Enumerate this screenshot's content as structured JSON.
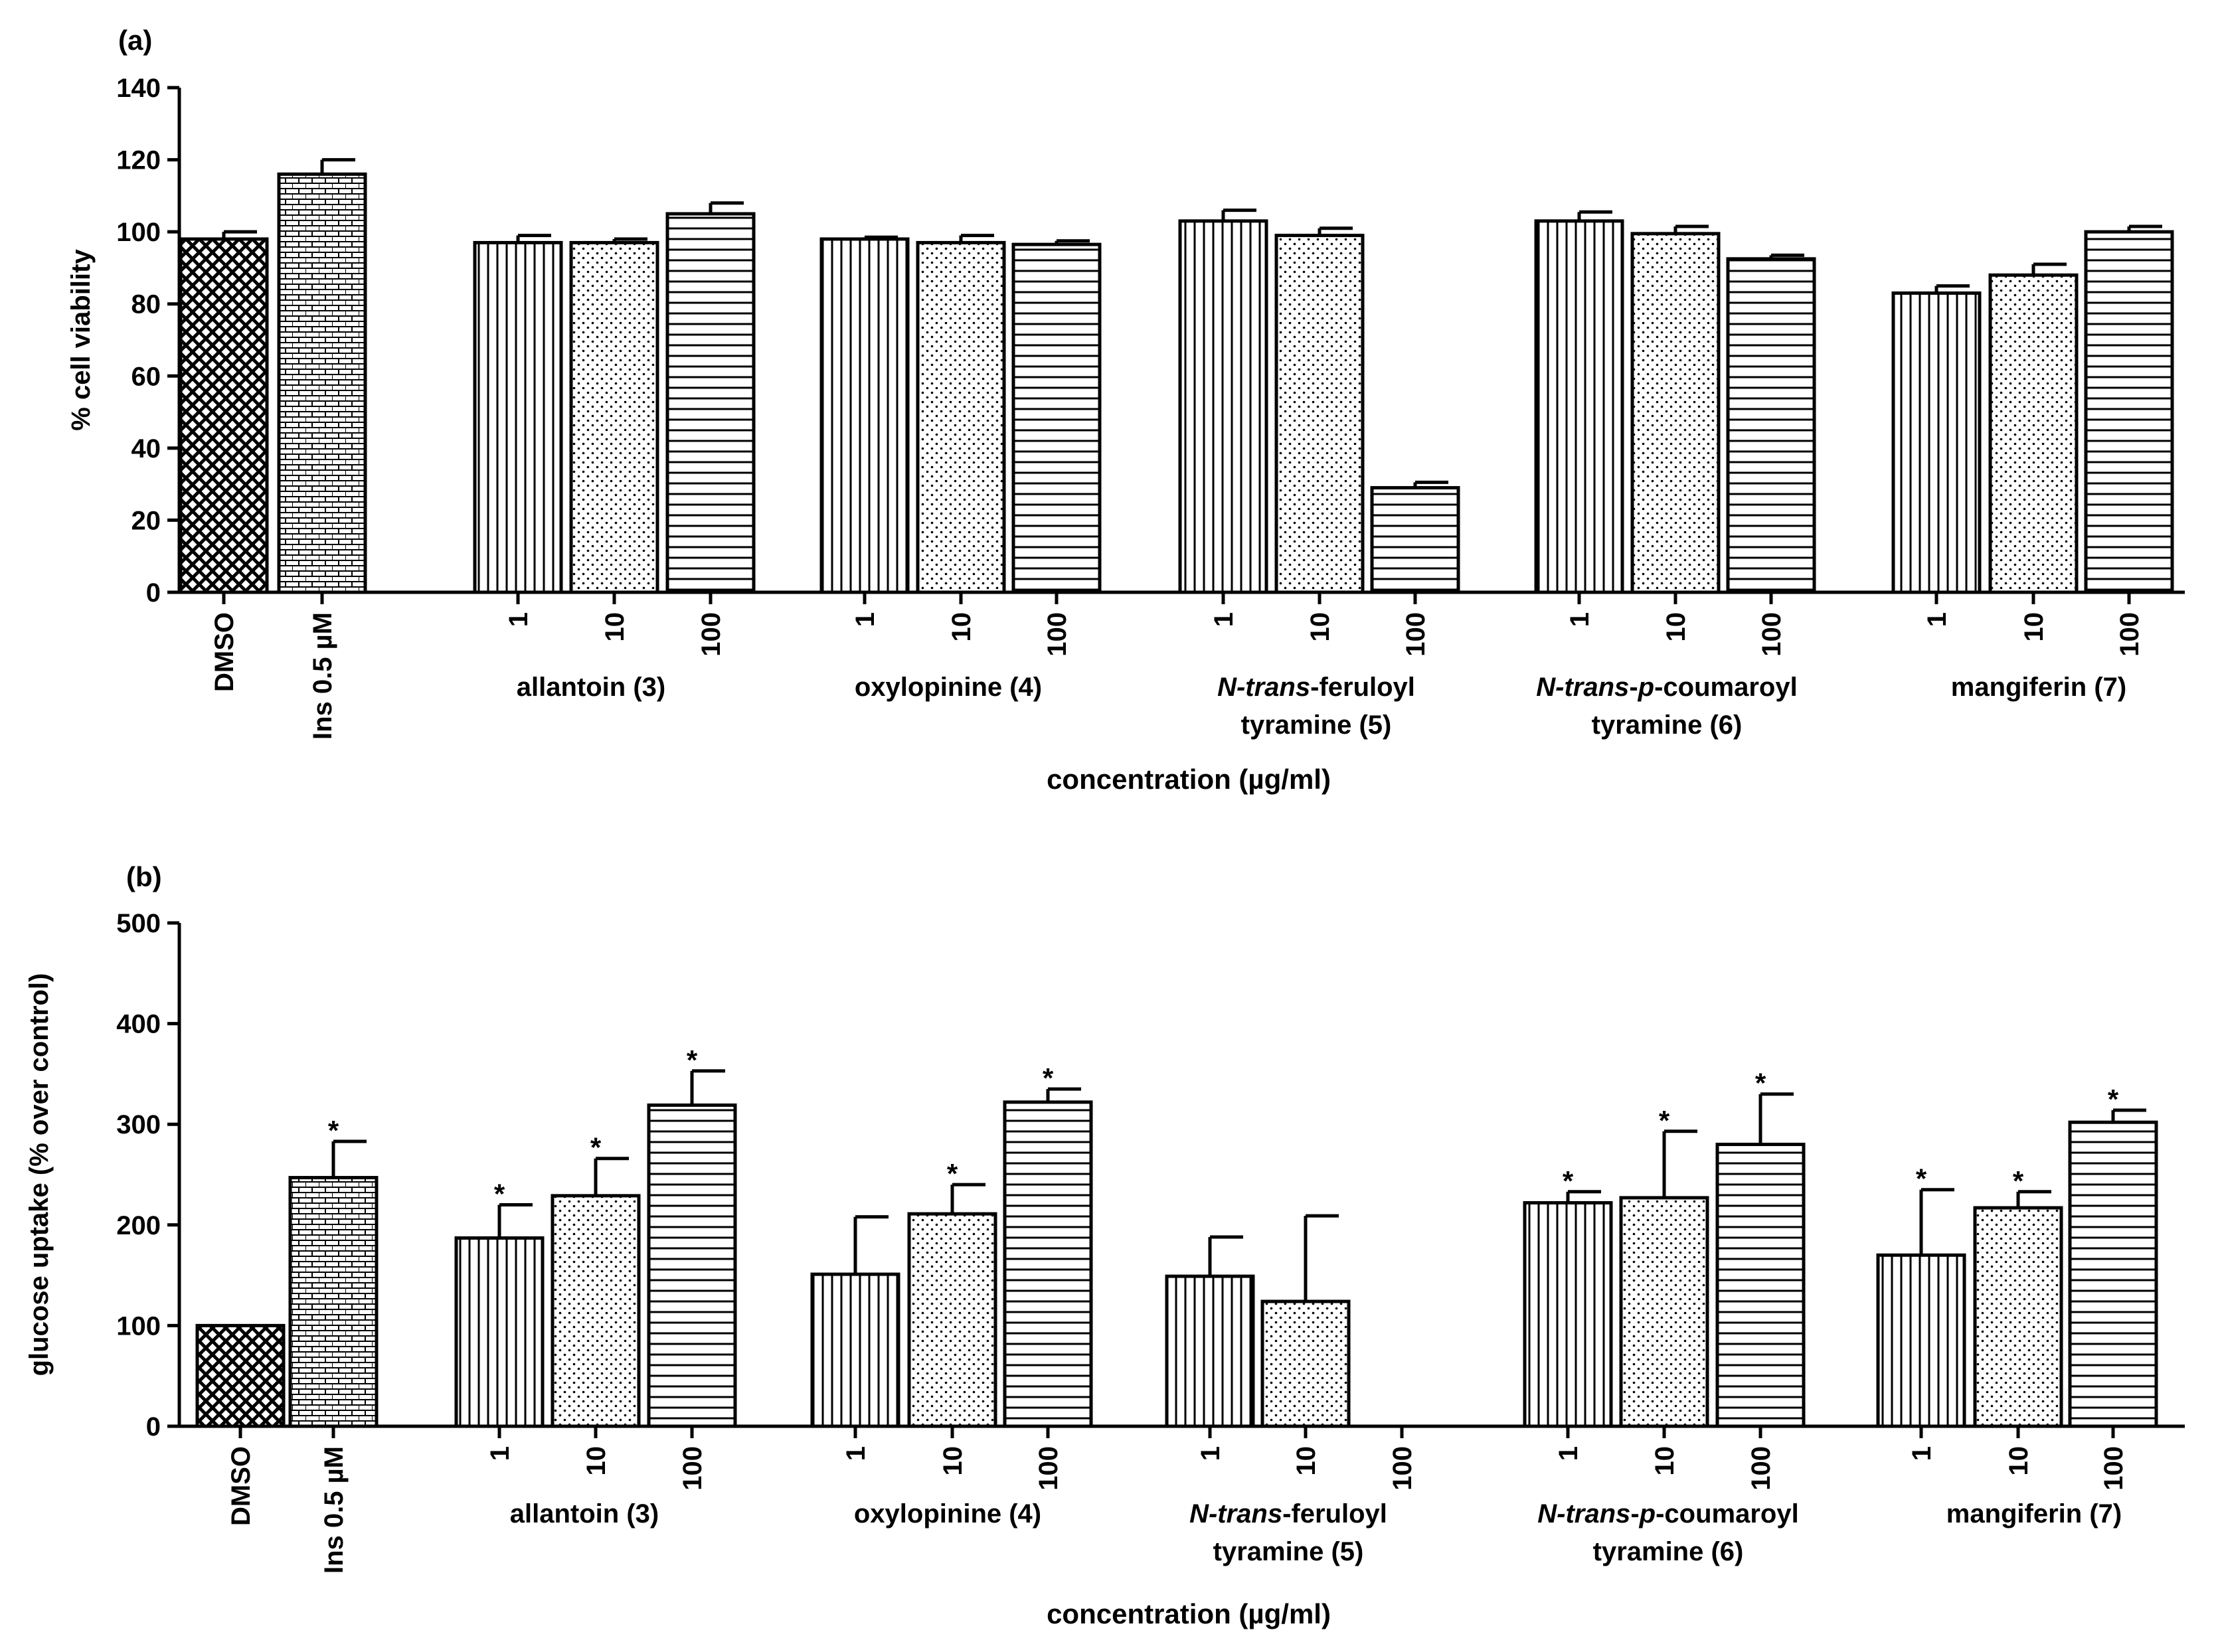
{
  "chart_data": [
    {
      "panel_label": "(a)",
      "type": "bar",
      "ylabel": "% cell viability",
      "xlabel": "concentration (µg/ml)",
      "ylim": [
        0,
        140
      ],
      "yticks": [
        0,
        20,
        40,
        60,
        80,
        100,
        120,
        140
      ],
      "controls": [
        {
          "label": "DMSO",
          "value": 98,
          "err": 2,
          "pattern": "crosshatch",
          "sig": false
        },
        {
          "label": "Ins 0.5 µM",
          "value": 116,
          "err": 4,
          "pattern": "brick",
          "sig": false
        }
      ],
      "concentrations": [
        "1",
        "10",
        "100"
      ],
      "groups": [
        {
          "label": [
            "allantoin  (3)"
          ],
          "values": [
            97,
            97,
            105
          ],
          "errors": [
            2,
            1,
            3
          ],
          "sig": [
            false,
            false,
            false
          ]
        },
        {
          "label": [
            "oxylopinine  (4)"
          ],
          "values": [
            98,
            97,
            96.5
          ],
          "errors": [
            0.5,
            2,
            1
          ],
          "sig": [
            false,
            false,
            false
          ]
        },
        {
          "label": [
            "N-trans-feruloyl",
            "tyramine  (5)"
          ],
          "values": [
            103,
            99,
            29
          ],
          "errors": [
            3,
            2,
            1.5
          ],
          "sig": [
            false,
            false,
            false
          ]
        },
        {
          "label": [
            "N-trans-p-coumaroyl",
            "tyramine (6)"
          ],
          "values": [
            103,
            99.5,
            92.5
          ],
          "errors": [
            2.5,
            2,
            1
          ],
          "sig": [
            false,
            false,
            false
          ]
        },
        {
          "label": [
            "mangiferin (7)"
          ],
          "values": [
            83,
            88,
            100
          ],
          "errors": [
            2,
            3,
            1.5
          ],
          "sig": [
            false,
            false,
            false
          ]
        }
      ]
    },
    {
      "panel_label": "(b)",
      "type": "bar",
      "ylabel": "glucose uptake (% over control)",
      "xlabel": "concentration (µg/ml)",
      "ylim": [
        0,
        500
      ],
      "yticks": [
        0,
        100,
        200,
        300,
        400,
        500
      ],
      "controls": [
        {
          "label": "DMSO",
          "value": 100,
          "err": 0,
          "pattern": "crosshatch",
          "sig": false
        },
        {
          "label": "Ins 0.5 µM",
          "value": 247,
          "err": 36,
          "pattern": "brick",
          "sig": true
        }
      ],
      "concentrations": [
        "1",
        "10",
        "100"
      ],
      "groups": [
        {
          "label": [
            "allantoin  (3)"
          ],
          "values": [
            187,
            229,
            319
          ],
          "errors": [
            33,
            37,
            34
          ],
          "sig": [
            true,
            true,
            true
          ]
        },
        {
          "label": [
            "oxylopinine  (4)"
          ],
          "values": [
            151,
            211,
            322
          ],
          "errors": [
            57,
            29,
            13
          ],
          "sig": [
            false,
            true,
            true
          ]
        },
        {
          "label": [
            "N-trans-feruloyl",
            "tyramine  (5)"
          ],
          "values": [
            149,
            124,
            null
          ],
          "errors": [
            39,
            85,
            0
          ],
          "sig": [
            false,
            false,
            false
          ]
        },
        {
          "label": [
            "N-trans-p-coumaroyl",
            "tyramine (6)"
          ],
          "values": [
            222,
            227,
            280
          ],
          "errors": [
            11,
            66,
            50
          ],
          "sig": [
            true,
            true,
            true
          ]
        },
        {
          "label": [
            "mangiferin (7)"
          ],
          "values": [
            170,
            217,
            302
          ],
          "errors": [
            65,
            16,
            12
          ],
          "sig": [
            true,
            true,
            true
          ]
        }
      ]
    }
  ]
}
